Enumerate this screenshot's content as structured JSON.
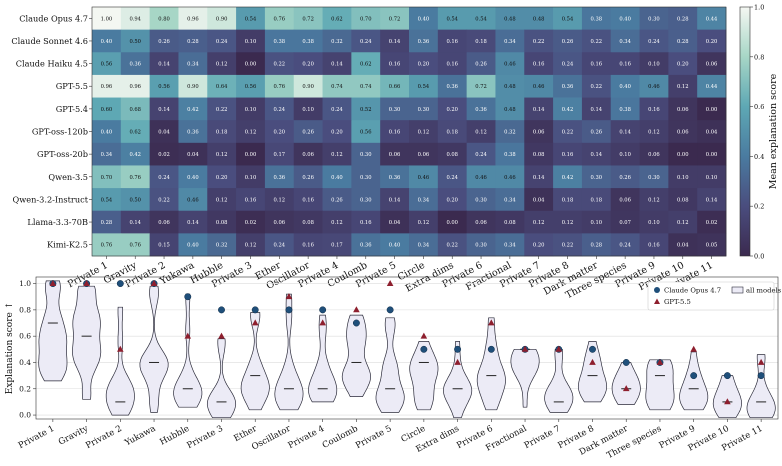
{
  "chart_data": [
    {
      "type": "heatmap",
      "models": [
        "Claude Opus 4.7",
        "Claude Sonnet 4.6",
        "Claude Haiku 4.5",
        "GPT-5.5",
        "GPT-5.4",
        "GPT-oss-120b",
        "GPT-oss-20b",
        "Qwen-3.5",
        "Qwen-3.2-Instruct",
        "Llama-3.3-70B",
        "Kimi-K2.5"
      ],
      "tasks": [
        "Private 1",
        "Gravity",
        "Private 2",
        "Yukawa",
        "Hubble",
        "Private 3",
        "Ether",
        "Oscillator",
        "Private 4",
        "Coulomb",
        "Private 5",
        "Circle",
        "Extra dims",
        "Private 6",
        "Fractional",
        "Private 7",
        "Private 8",
        "Dark matter",
        "Three species",
        "Private 9",
        "Private 10",
        "Private 11"
      ],
      "values": [
        [
          1.0,
          0.94,
          0.8,
          0.96,
          0.9,
          0.54,
          0.76,
          0.72,
          0.62,
          0.7,
          0.72,
          0.4,
          0.54,
          0.54,
          0.48,
          0.48,
          0.54,
          0.38,
          0.4,
          0.3,
          0.28,
          0.44
        ],
        [
          0.4,
          0.5,
          0.26,
          0.28,
          0.24,
          0.1,
          0.38,
          0.38,
          0.32,
          0.24,
          0.14,
          0.36,
          0.16,
          0.18,
          0.34,
          0.22,
          0.26,
          0.22,
          0.34,
          0.24,
          0.28,
          0.2
        ],
        [
          0.56,
          0.36,
          0.14,
          0.34,
          0.12,
          0.0,
          0.22,
          0.2,
          0.14,
          0.62,
          0.16,
          0.2,
          0.16,
          0.26,
          0.46,
          0.16,
          0.24,
          0.16,
          0.16,
          0.1,
          0.2,
          0.06
        ],
        [
          0.96,
          0.96,
          0.56,
          0.9,
          0.64,
          0.56,
          0.76,
          0.9,
          0.74,
          0.74,
          0.66,
          0.54,
          0.36,
          0.72,
          0.48,
          0.46,
          0.36,
          0.22,
          0.4,
          0.46,
          0.12,
          0.44
        ],
        [
          0.6,
          0.68,
          0.14,
          0.42,
          0.22,
          0.1,
          0.24,
          0.1,
          0.24,
          0.52,
          0.3,
          0.3,
          0.2,
          0.36,
          0.48,
          0.14,
          0.42,
          0.14,
          0.38,
          0.16,
          0.06,
          0.0
        ],
        [
          0.4,
          0.62,
          0.04,
          0.36,
          0.18,
          0.12,
          0.2,
          0.26,
          0.2,
          0.56,
          0.16,
          0.12,
          0.18,
          0.12,
          0.32,
          0.06,
          0.22,
          0.26,
          0.14,
          0.12,
          0.06,
          0.04
        ],
        [
          0.34,
          0.42,
          0.02,
          0.04,
          0.12,
          0.0,
          0.17,
          0.06,
          0.12,
          0.3,
          0.06,
          0.06,
          0.08,
          0.24,
          0.38,
          0.08,
          0.16,
          0.14,
          0.1,
          0.06,
          0.0,
          0.0
        ],
        [
          0.7,
          0.76,
          0.24,
          0.4,
          0.2,
          0.1,
          0.36,
          0.26,
          0.4,
          0.3,
          0.36,
          0.46,
          0.24,
          0.46,
          0.46,
          0.14,
          0.42,
          0.3,
          0.26,
          0.3,
          0.1,
          0.1
        ],
        [
          0.54,
          0.5,
          0.22,
          0.46,
          0.12,
          0.16,
          0.12,
          0.16,
          0.26,
          0.3,
          0.14,
          0.34,
          0.2,
          0.3,
          0.34,
          0.04,
          0.18,
          0.18,
          0.06,
          0.12,
          0.08,
          0.14
        ],
        [
          0.28,
          0.14,
          0.06,
          0.14,
          0.08,
          0.02,
          0.06,
          0.08,
          0.12,
          0.16,
          0.04,
          0.12,
          0.0,
          0.06,
          0.08,
          0.12,
          0.12,
          0.1,
          0.07,
          0.1,
          0.12,
          0.02
        ],
        [
          0.76,
          0.76,
          0.15,
          0.4,
          0.32,
          0.12,
          0.24,
          0.16,
          0.17,
          0.36,
          0.4,
          0.34,
          0.22,
          0.3,
          0.34,
          0.2,
          0.22,
          0.28,
          0.24,
          0.16,
          0.04,
          0.05
        ]
      ],
      "colorbar": {
        "label": "Mean explanation score",
        "ticks": [
          0.0,
          0.2,
          0.4,
          0.6,
          0.8,
          1.0
        ],
        "range": [
          0,
          1
        ]
      }
    },
    {
      "type": "violin",
      "ylabel": "Explanation score ↑",
      "ylim": [
        -0.03,
        1.05
      ],
      "yticks": [
        0.0,
        0.2,
        0.4,
        0.6,
        0.8,
        1.0
      ],
      "grid": true,
      "legend": {
        "placement": "top-right",
        "entries": [
          "Claude Opus 4.7",
          "GPT-5.5",
          "all models"
        ]
      },
      "medians": [
        0.7,
        0.6,
        0.1,
        0.4,
        0.2,
        0.1,
        0.3,
        0.2,
        0.2,
        0.4,
        0.2,
        0.4,
        0.2,
        0.3,
        0.5,
        0.1,
        0.3,
        0.2,
        0.3,
        0.2,
        0.1,
        0.1
      ],
      "opus": [
        1.0,
        1.0,
        1.0,
        1.0,
        0.9,
        0.8,
        0.8,
        0.8,
        0.8,
        0.7,
        0.8,
        0.5,
        0.5,
        0.5,
        0.5,
        0.5,
        0.5,
        0.4,
        0.4,
        0.3,
        0.3,
        0.3
      ],
      "gpt": [
        1.0,
        1.0,
        0.5,
        1.0,
        0.6,
        0.6,
        0.7,
        0.9,
        0.7,
        0.8,
        1.0,
        0.6,
        0.4,
        0.7,
        0.5,
        0.5,
        0.4,
        0.2,
        0.4,
        0.5,
        0.1,
        0.4
      ]
    }
  ]
}
